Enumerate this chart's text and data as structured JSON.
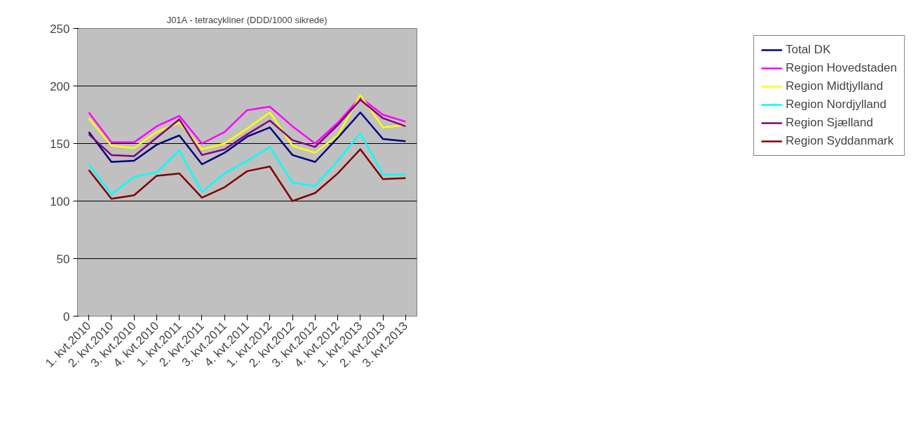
{
  "chart_data": {
    "type": "line",
    "title": "J01A - tetracykliner (DDD/1000 sikrede)",
    "categories": [
      "1. kvt.2010",
      "2. kvt.2010",
      "3. kvt.2010",
      "4. kvt.2010",
      "1. kvt.2011",
      "2. kvt.2011",
      "3. kvt.2011",
      "4. kvt.2011",
      "1. kvt.2012",
      "2. kvt.2012",
      "3. kvt.2012",
      "4. kvt.2012",
      "1. kvt.2013",
      "2. kvt.2013",
      "3. kvt.2013"
    ],
    "series": [
      {
        "name": "Total DK",
        "color": "#000080",
        "values": [
          160,
          134,
          135,
          149,
          157,
          132,
          142,
          156,
          164,
          140,
          134,
          155,
          177,
          154,
          152
        ]
      },
      {
        "name": "Region Hovedstaden",
        "color": "#ff00ff",
        "values": [
          177,
          151,
          151,
          165,
          174,
          150,
          160,
          179,
          182,
          165,
          150,
          168,
          190,
          175,
          169
        ]
      },
      {
        "name": "Region Midtjylland",
        "color": "#ffff00",
        "values": [
          172,
          148,
          146,
          160,
          168,
          145,
          150,
          163,
          177,
          148,
          142,
          157,
          192,
          164,
          166
        ]
      },
      {
        "name": "Region Nordjylland",
        "color": "#00ffff",
        "values": [
          132,
          106,
          121,
          125,
          144,
          108,
          124,
          135,
          147,
          116,
          113,
          135,
          159,
          123,
          123
        ]
      },
      {
        "name": "Region Sjælland",
        "color": "#800080",
        "values": [
          158,
          140,
          139,
          155,
          171,
          140,
          145,
          158,
          170,
          153,
          147,
          166,
          188,
          172,
          165
        ]
      },
      {
        "name": "Region Syddanmark",
        "color": "#800000",
        "values": [
          127,
          102,
          105,
          122,
          124,
          103,
          112,
          126,
          130,
          100,
          107,
          124,
          145,
          119,
          120
        ]
      }
    ],
    "ylim": [
      0,
      250
    ],
    "yticks": [
      0,
      50,
      100,
      150,
      200,
      250
    ],
    "grid": "y",
    "legend": "right",
    "marker": "none",
    "line_style": "solid"
  }
}
